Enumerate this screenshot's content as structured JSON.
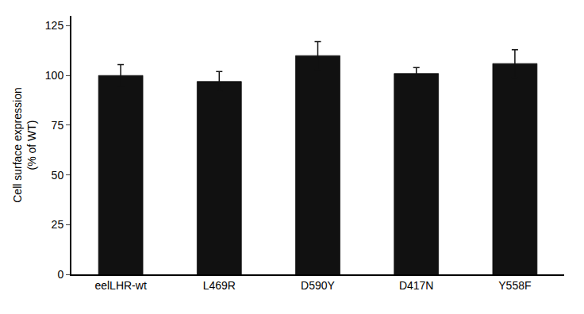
{
  "chart_data": {
    "type": "bar",
    "categories": [
      "eelLHR-wt",
      "L469R",
      "D590Y",
      "D417N",
      "Y558F"
    ],
    "values": [
      100.0,
      97.0,
      110.0,
      101.0,
      106.0
    ],
    "errors": [
      5.5,
      5.0,
      7.0,
      3.0,
      7.0
    ],
    "color": "#111111",
    "ylabel": "Cell surface expression\n(% of WT)",
    "ylim": [
      0,
      130
    ],
    "yticks": [
      0,
      25,
      50,
      75,
      100,
      125
    ],
    "grid": false
  }
}
